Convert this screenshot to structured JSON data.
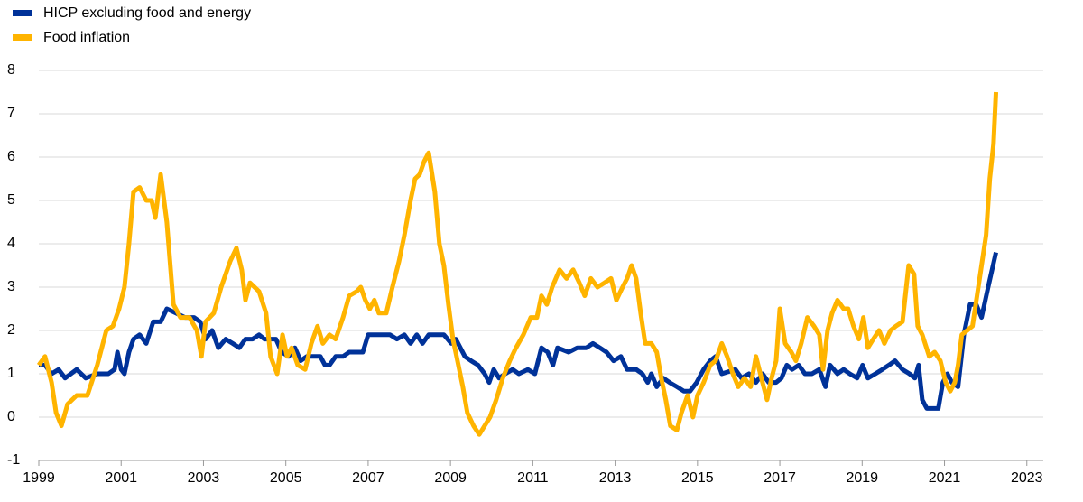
{
  "chart_data": {
    "type": "line",
    "xlim": [
      1999,
      2023.4
    ],
    "xticks": [
      1999,
      2001,
      2003,
      2005,
      2007,
      2009,
      2011,
      2013,
      2015,
      2017,
      2019,
      2021,
      2023
    ],
    "ylim": [
      -1,
      8
    ],
    "yticks": [
      -1,
      0,
      1,
      2,
      3,
      4,
      5,
      6,
      7,
      8
    ],
    "grid": true,
    "legend": "top-left",
    "series": [
      {
        "name": "HICP excluding food and energy",
        "color": "#003299",
        "x": [
          1999.0,
          1999.15,
          1999.31,
          1999.48,
          1999.64,
          1999.92,
          2000.14,
          2000.42,
          2000.69,
          2000.84,
          2000.91,
          2001.0,
          2001.08,
          2001.19,
          2001.3,
          2001.45,
          2001.61,
          2001.78,
          2001.96,
          2002.11,
          2002.33,
          2002.55,
          2002.77,
          2002.92,
          2003.05,
          2003.21,
          2003.36,
          2003.54,
          2003.71,
          2003.87,
          2004.02,
          2004.19,
          2004.35,
          2004.48,
          2004.63,
          2004.76,
          2004.9,
          2005.07,
          2005.22,
          2005.36,
          2005.51,
          2005.84,
          2005.95,
          2006.06,
          2006.21,
          2006.39,
          2006.54,
          2006.87,
          2007.0,
          2007.53,
          2007.7,
          2007.88,
          2008.03,
          2008.18,
          2008.32,
          2008.47,
          2008.84,
          2009.02,
          2009.13,
          2009.24,
          2009.35,
          2009.5,
          2009.67,
          2009.83,
          2009.94,
          2010.05,
          2010.18,
          2010.33,
          2010.51,
          2010.66,
          2010.88,
          2011.05,
          2011.21,
          2011.36,
          2011.49,
          2011.6,
          2011.87,
          2012.08,
          2012.3,
          2012.46,
          2012.63,
          2012.79,
          2012.96,
          2013.14,
          2013.29,
          2013.51,
          2013.66,
          2013.79,
          2013.88,
          2014.01,
          2014.17,
          2014.32,
          2014.5,
          2014.67,
          2014.82,
          2014.98,
          2015.15,
          2015.31,
          2015.44,
          2015.59,
          2015.92,
          2016.07,
          2016.25,
          2016.42,
          2016.58,
          2016.73,
          2016.91,
          2017.04,
          2017.17,
          2017.3,
          2017.46,
          2017.61,
          2017.78,
          2017.96,
          2018.11,
          2018.22,
          2018.4,
          2018.55,
          2018.7,
          2018.88,
          2019.01,
          2019.14,
          2019.32,
          2019.49,
          2019.65,
          2019.8,
          2019.98,
          2020.15,
          2020.28,
          2020.37,
          2020.46,
          2020.57,
          2020.85,
          2020.96,
          2021.07,
          2021.18,
          2021.33,
          2021.47,
          2021.62,
          2021.77,
          2021.9,
          2022.06,
          2022.25
        ],
        "values": [
          1.2,
          1.2,
          1.0,
          1.1,
          0.9,
          1.1,
          0.9,
          1.0,
          1.0,
          1.1,
          1.5,
          1.1,
          1.0,
          1.5,
          1.8,
          1.9,
          1.7,
          2.2,
          2.2,
          2.5,
          2.4,
          2.3,
          2.3,
          2.2,
          1.8,
          2.0,
          1.6,
          1.8,
          1.7,
          1.6,
          1.8,
          1.8,
          1.9,
          1.8,
          1.8,
          1.8,
          1.5,
          1.4,
          1.6,
          1.3,
          1.4,
          1.4,
          1.2,
          1.2,
          1.4,
          1.4,
          1.5,
          1.5,
          1.9,
          1.9,
          1.8,
          1.9,
          1.7,
          1.9,
          1.7,
          1.9,
          1.9,
          1.7,
          1.8,
          1.6,
          1.4,
          1.3,
          1.2,
          1.0,
          0.8,
          1.1,
          0.9,
          1.0,
          1.1,
          1.0,
          1.1,
          1.0,
          1.6,
          1.5,
          1.2,
          1.6,
          1.5,
          1.6,
          1.6,
          1.7,
          1.6,
          1.5,
          1.3,
          1.4,
          1.1,
          1.1,
          1.0,
          0.8,
          1.0,
          0.7,
          0.9,
          0.8,
          0.7,
          0.6,
          0.6,
          0.8,
          1.1,
          1.3,
          1.4,
          1.0,
          1.1,
          0.9,
          1.0,
          0.8,
          1.0,
          0.8,
          0.8,
          0.9,
          1.2,
          1.1,
          1.2,
          1.0,
          1.0,
          1.1,
          0.7,
          1.2,
          1.0,
          1.1,
          1.0,
          0.9,
          1.2,
          0.9,
          1.0,
          1.1,
          1.2,
          1.3,
          1.1,
          1.0,
          0.9,
          1.2,
          0.4,
          0.2,
          0.2,
          0.8,
          1.0,
          0.8,
          0.7,
          1.9,
          2.6,
          2.6,
          2.3,
          3.0,
          3.8
        ]
      },
      {
        "name": "Food inflation",
        "color": "#ffb400",
        "x": [
          1999.0,
          1999.15,
          1999.31,
          1999.42,
          1999.55,
          1999.7,
          1999.92,
          2000.18,
          2000.42,
          2000.64,
          2000.8,
          2000.95,
          2001.08,
          2001.19,
          2001.3,
          2001.45,
          2001.61,
          2001.74,
          2001.83,
          2001.96,
          2002.11,
          2002.27,
          2002.44,
          2002.66,
          2002.84,
          2002.95,
          2003.05,
          2003.25,
          2003.43,
          2003.65,
          2003.8,
          2003.93,
          2004.02,
          2004.13,
          2004.35,
          2004.52,
          2004.63,
          2004.79,
          2004.92,
          2005.03,
          2005.14,
          2005.29,
          2005.47,
          2005.62,
          2005.77,
          2005.9,
          2006.06,
          2006.21,
          2006.39,
          2006.54,
          2006.72,
          2006.82,
          2006.93,
          2007.04,
          2007.15,
          2007.26,
          2007.44,
          2007.59,
          2007.75,
          2007.88,
          2008.03,
          2008.14,
          2008.25,
          2008.36,
          2008.47,
          2008.62,
          2008.73,
          2008.84,
          2008.95,
          2009.06,
          2009.17,
          2009.3,
          2009.41,
          2009.56,
          2009.7,
          2009.83,
          2009.96,
          2010.11,
          2010.27,
          2010.44,
          2010.59,
          2010.77,
          2010.95,
          2011.1,
          2011.21,
          2011.34,
          2011.47,
          2011.65,
          2011.82,
          2011.98,
          2012.13,
          2012.26,
          2012.41,
          2012.57,
          2012.74,
          2012.9,
          2013.03,
          2013.18,
          2013.29,
          2013.4,
          2013.51,
          2013.62,
          2013.73,
          2013.88,
          2014.01,
          2014.12,
          2014.23,
          2014.34,
          2014.5,
          2014.61,
          2014.76,
          2014.89,
          2015.0,
          2015.15,
          2015.31,
          2015.44,
          2015.59,
          2015.72,
          2015.86,
          2015.99,
          2016.14,
          2016.29,
          2016.42,
          2016.58,
          2016.69,
          2016.8,
          2016.91,
          2017.0,
          2017.13,
          2017.28,
          2017.39,
          2017.52,
          2017.67,
          2017.83,
          2017.96,
          2018.05,
          2018.16,
          2018.27,
          2018.4,
          2018.55,
          2018.66,
          2018.79,
          2018.92,
          2019.03,
          2019.14,
          2019.27,
          2019.41,
          2019.54,
          2019.69,
          2019.82,
          2019.98,
          2020.13,
          2020.26,
          2020.35,
          2020.46,
          2020.63,
          2020.76,
          2020.9,
          2021.03,
          2021.14,
          2021.25,
          2021.33,
          2021.42,
          2021.55,
          2021.68,
          2021.79,
          2021.9,
          2022.01,
          2022.1,
          2022.19,
          2022.25
        ],
        "values": [
          1.2,
          1.4,
          0.8,
          0.1,
          -0.2,
          0.3,
          0.5,
          0.5,
          1.2,
          2.0,
          2.1,
          2.5,
          3.0,
          4.0,
          5.2,
          5.3,
          5.0,
          5.0,
          4.6,
          5.6,
          4.5,
          2.6,
          2.3,
          2.3,
          2.0,
          1.4,
          2.2,
          2.4,
          3.0,
          3.6,
          3.9,
          3.4,
          2.7,
          3.1,
          2.9,
          2.4,
          1.4,
          1.0,
          1.9,
          1.4,
          1.6,
          1.2,
          1.1,
          1.7,
          2.1,
          1.7,
          1.9,
          1.8,
          2.3,
          2.8,
          2.9,
          3.0,
          2.7,
          2.5,
          2.7,
          2.4,
          2.4,
          3.0,
          3.6,
          4.2,
          5.0,
          5.5,
          5.6,
          5.9,
          6.1,
          5.2,
          4.0,
          3.5,
          2.6,
          1.8,
          1.3,
          0.7,
          0.1,
          -0.2,
          -0.4,
          -0.2,
          0.0,
          0.4,
          0.9,
          1.3,
          1.6,
          1.9,
          2.3,
          2.3,
          2.8,
          2.6,
          3.0,
          3.4,
          3.2,
          3.4,
          3.1,
          2.8,
          3.2,
          3.0,
          3.1,
          3.2,
          2.7,
          3.0,
          3.2,
          3.5,
          3.2,
          2.4,
          1.7,
          1.7,
          1.5,
          0.9,
          0.4,
          -0.2,
          -0.3,
          0.1,
          0.5,
          0.0,
          0.5,
          0.8,
          1.2,
          1.3,
          1.7,
          1.4,
          1.0,
          0.7,
          0.9,
          0.7,
          1.4,
          0.8,
          0.4,
          0.9,
          1.3,
          2.5,
          1.7,
          1.5,
          1.3,
          1.7,
          2.3,
          2.1,
          1.9,
          1.1,
          2.0,
          2.4,
          2.7,
          2.5,
          2.5,
          2.1,
          1.8,
          2.3,
          1.6,
          1.8,
          2.0,
          1.7,
          2.0,
          2.1,
          2.2,
          3.5,
          3.3,
          2.1,
          1.9,
          1.4,
          1.5,
          1.3,
          0.8,
          0.6,
          0.8,
          1.2,
          1.9,
          2.0,
          2.1,
          2.8,
          3.5,
          4.2,
          5.5,
          6.3,
          7.5
        ]
      }
    ]
  }
}
